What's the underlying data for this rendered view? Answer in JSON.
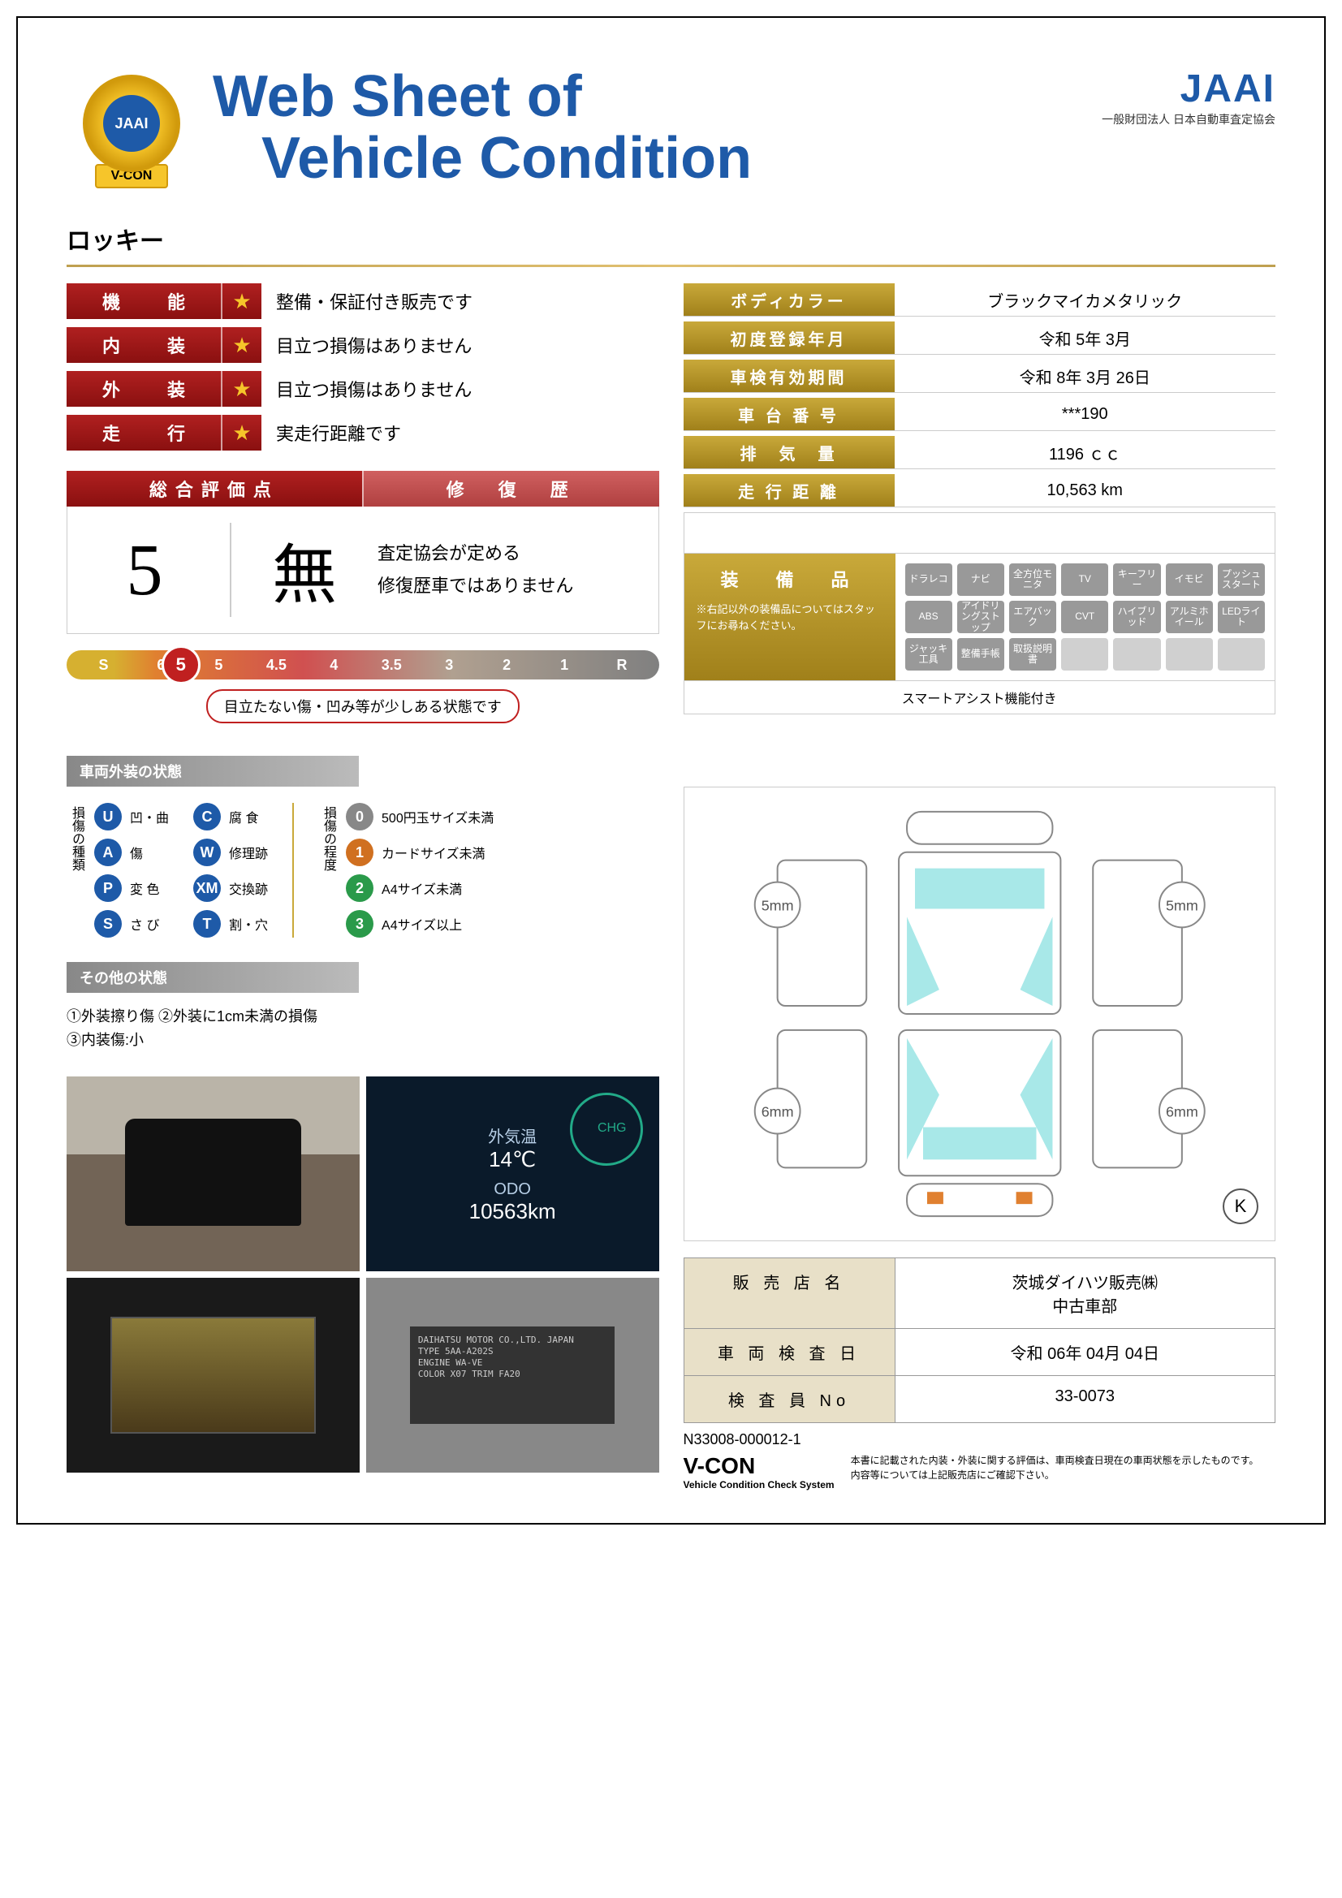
{
  "header": {
    "title_line1": "Web Sheet of",
    "title_line2": "Vehicle Condition",
    "jaai_logo": "JAAI",
    "jaai_sub": "一般財団法人 日本自動車査定協会",
    "vcon_badge_text": "JAAI",
    "vcon_ribbon": "V-CON"
  },
  "vehicle_name": "ロッキー",
  "ratings": [
    {
      "label": "機　能",
      "text": "整備・保証付き販売です"
    },
    {
      "label": "内　装",
      "text": "目立つ損傷はありません"
    },
    {
      "label": "外　装",
      "text": "目立つ損傷はありません"
    },
    {
      "label": "走　行",
      "text": "実走行距離です"
    }
  ],
  "info": [
    {
      "label": "ボディカラー",
      "value": "ブラックマイカメタリック"
    },
    {
      "label": "初度登録年月",
      "value": "令和 5年 3月"
    },
    {
      "label": "車検有効期間",
      "value": "令和 8年 3月 26日"
    },
    {
      "label": "車 台 番 号",
      "value": "***190"
    },
    {
      "label": "排　気　量",
      "value": "1196 ｃｃ"
    },
    {
      "label": "走 行 距 離",
      "value": "10,563 km"
    }
  ],
  "overall": {
    "head_left": "総合評価点",
    "head_right": "修　復　歴",
    "score": "5",
    "mu": "無",
    "desc1": "査定協会が定める",
    "desc2": "修復歴車ではありません"
  },
  "scale": {
    "ticks": [
      "S",
      "6",
      "5",
      "4.5",
      "4",
      "3.5",
      "3",
      "2",
      "1",
      "R"
    ],
    "marker": "5",
    "caption": "目立たない傷・凹み等が少しある状態です"
  },
  "equipment": {
    "title": "装　備　品",
    "note": "※右記以外の装備品についてはスタッフにお尋ねください。",
    "items": [
      "ドラレコ",
      "ナビ",
      "全方位モニタ",
      "TV",
      "キーフリー",
      "イモビ",
      "プッシュスタート",
      "ABS",
      "アイドリングストップ",
      "エアバック",
      "CVT",
      "ハイブリッド",
      "アルミホイール",
      "LEDライト",
      "ジャッキ工具",
      "整備手帳",
      "取扱説明書",
      "",
      "",
      "",
      ""
    ],
    "footer": "スマートアシスト機能付き"
  },
  "section_exterior": "車両外装の状態",
  "legend_types_label": "損傷の種類",
  "legend_types": [
    {
      "k": "U",
      "c": "b-blue",
      "t": "凹・曲"
    },
    {
      "k": "C",
      "c": "b-blue",
      "t": "腐 食"
    },
    {
      "k": "A",
      "c": "b-blue",
      "t": "傷"
    },
    {
      "k": "W",
      "c": "b-blue",
      "t": "修理跡"
    },
    {
      "k": "P",
      "c": "b-blue",
      "t": "変 色"
    },
    {
      "k": "XM",
      "c": "b-blue",
      "t": "交換跡"
    },
    {
      "k": "S",
      "c": "b-blue",
      "t": "さ び"
    },
    {
      "k": "T",
      "c": "b-blue",
      "t": "割・穴"
    }
  ],
  "legend_degree_label": "損傷の程度",
  "legend_degrees": [
    {
      "k": "0",
      "c": "b-gray",
      "t": "500円玉サイズ未満"
    },
    {
      "k": "1",
      "c": "b-orange",
      "t": "カードサイズ未満"
    },
    {
      "k": "2",
      "c": "b-green",
      "t": "A4サイズ未満"
    },
    {
      "k": "3",
      "c": "b-green",
      "t": "A4サイズ以上"
    }
  ],
  "section_other": "その他の状態",
  "misc_notes": "①外装擦り傷 ②外装に1cm未満の損傷\n③内装傷:小",
  "photos": {
    "odo_label": "外気温",
    "odo_temp": "14℃",
    "odo_title": "ODO",
    "odo_value": "10563km",
    "chg": "CHG",
    "plate_text": "DAIHATSU MOTOR CO.,LTD. JAPAN\nTYPE 5AA-A202S\nENGINE WA-VE\nCOLOR X07   TRIM FA20"
  },
  "diagram": {
    "tires": [
      "5mm",
      "5mm",
      "6mm",
      "6mm"
    ],
    "k_mark": "K"
  },
  "footer": {
    "rows": [
      {
        "label": "販 売 店 名",
        "value": "茨城ダイハツ販売㈱\n中古車部"
      },
      {
        "label": "車 両 検 査 日",
        "value": "令和 06年 04月 04日"
      },
      {
        "label": "検 査 員 No",
        "value": "33-0073"
      }
    ],
    "doc_id": "N33008-000012-1",
    "vcon": "V-CON",
    "vcon_sub": "Vehicle Condition Check System",
    "disclaimer": "本書に記載された内装・外装に関する評価は、車両検査日現在の車両状態を示したものです。\n内容等については上記販売店にご確認下さい。"
  },
  "colors": {
    "brand_blue": "#1e5aa8",
    "red_grad_a": "#b02020",
    "gold_grad_a": "#c9a93a",
    "cyan_fill": "#a8e8e8"
  }
}
